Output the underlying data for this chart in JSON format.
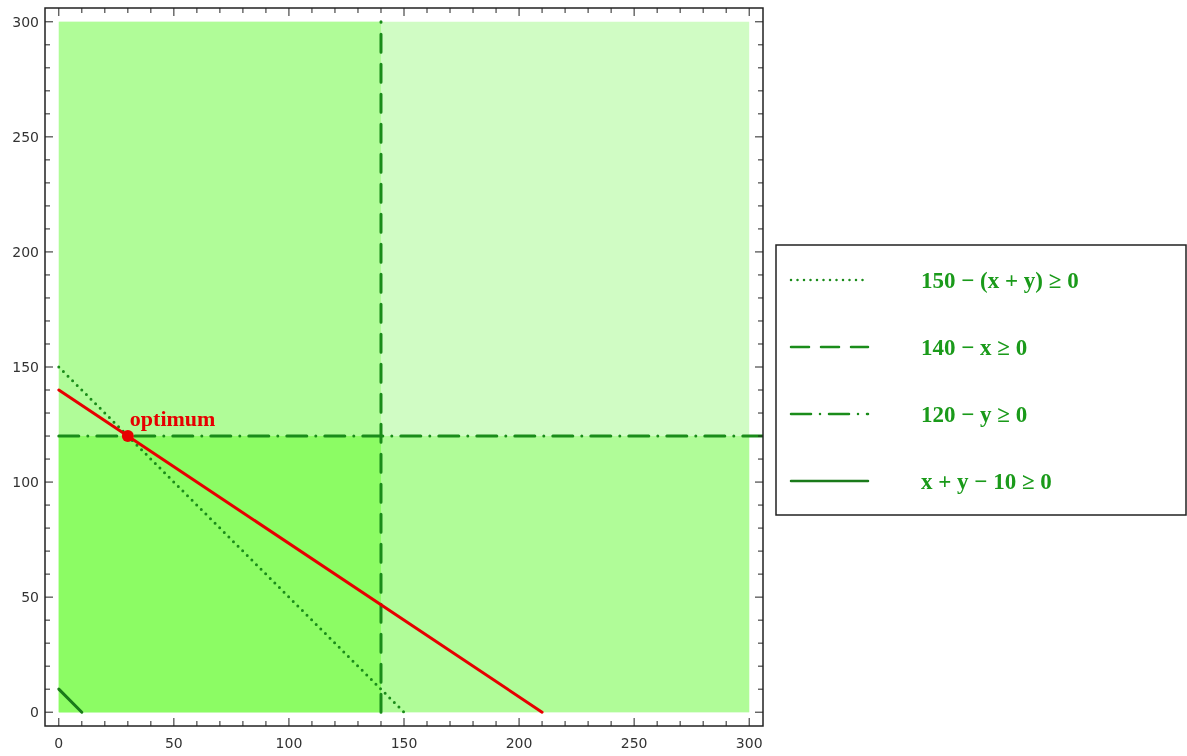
{
  "chart_data": {
    "type": "line",
    "xlim": [
      -6,
      306
    ],
    "ylim": [
      -6,
      306
    ],
    "xticks": [
      0,
      {
        "value": 10,
        "label": null
      },
      {
        "value": 20,
        "label": null
      },
      {
        "value": 30,
        "label": null
      },
      {
        "value": 40,
        "label": null
      },
      50,
      {
        "value": 60,
        "label": null
      },
      {
        "value": 70,
        "label": null
      },
      {
        "value": 80,
        "label": null
      },
      {
        "value": 90,
        "label": null
      },
      100,
      {
        "value": 110,
        "label": null
      },
      {
        "value": 120,
        "label": null
      },
      {
        "value": 130,
        "label": null
      },
      {
        "value": 140,
        "label": null
      },
      150,
      {
        "value": 160,
        "label": null
      },
      {
        "value": 170,
        "label": null
      },
      {
        "value": 180,
        "label": null
      },
      {
        "value": 190,
        "label": null
      },
      200,
      {
        "value": 210,
        "label": null
      },
      {
        "value": 220,
        "label": null
      },
      {
        "value": 230,
        "label": null
      },
      {
        "value": 240,
        "label": null
      },
      250,
      {
        "value": 260,
        "label": null
      },
      {
        "value": 270,
        "label": null
      },
      {
        "value": 280,
        "label": null
      },
      {
        "value": 290,
        "label": null
      },
      300
    ],
    "yticks": [
      0,
      {
        "value": 10,
        "label": null
      },
      {
        "value": 20,
        "label": null
      },
      {
        "value": 30,
        "label": null
      },
      {
        "value": 40,
        "label": null
      },
      50,
      {
        "value": 60,
        "label": null
      },
      {
        "value": 70,
        "label": null
      },
      {
        "value": 80,
        "label": null
      },
      {
        "value": 90,
        "label": null
      },
      100,
      {
        "value": 110,
        "label": null
      },
      {
        "value": 120,
        "label": null
      },
      {
        "value": 130,
        "label": null
      },
      {
        "value": 140,
        "label": null
      },
      150,
      {
        "value": 160,
        "label": null
      },
      {
        "value": 170,
        "label": null
      },
      {
        "value": 180,
        "label": null
      },
      {
        "value": 190,
        "label": null
      },
      200,
      {
        "value": 210,
        "label": null
      },
      {
        "value": 220,
        "label": null
      },
      {
        "value": 230,
        "label": null
      },
      {
        "value": 240,
        "label": null
      },
      250,
      {
        "value": 260,
        "label": null
      },
      {
        "value": 270,
        "label": null
      },
      {
        "value": 280,
        "label": null
      },
      {
        "value": 290,
        "label": null
      },
      300
    ],
    "legend": "right",
    "series": [
      {
        "type": "area",
        "color": "#d0fcc4",
        "x": [
          0,
          300
        ],
        "values": [
          300,
          300
        ]
      },
      {
        "type": "area",
        "color": "#b0fc98",
        "x": [
          0,
          140
        ],
        "values": [
          300,
          300
        ]
      },
      {
        "type": "area",
        "color": "#b0fc98",
        "x": [
          0,
          300
        ],
        "values": [
          120,
          120
        ]
      },
      {
        "type": "area",
        "color": "#8cfc64",
        "x": [
          0,
          140
        ],
        "values": [
          120,
          120
        ]
      },
      {
        "name": "150 − (x + y) ≥ 0",
        "color": "#1a8c1a",
        "line_style": "dotted",
        "x": [
          0,
          150
        ],
        "values": [
          150,
          0
        ]
      },
      {
        "name": "140 − x ≥ 0",
        "color": "#1a8c1a",
        "line_style": "dashed",
        "x": [
          140,
          140
        ],
        "values": [
          0,
          300
        ]
      },
      {
        "name": "120 − y ≥ 0",
        "color": "#1a8c1a",
        "line_style": "dashdot",
        "x": [
          0,
          306
        ],
        "values": [
          120,
          120
        ]
      },
      {
        "name": "x + y − 10 ≥ 0",
        "color": "#1a7a1a",
        "line_style": "solid",
        "x": [
          0,
          10
        ],
        "values": [
          10,
          0
        ]
      },
      {
        "color": "#e60000",
        "line_style": "solid",
        "x": [
          0,
          210
        ],
        "values": [
          140,
          0
        ]
      },
      {
        "type": "scatter",
        "color": "#e60000",
        "marker": "circle",
        "x": [
          30
        ],
        "values": [
          120
        ]
      }
    ],
    "annotations": [
      {
        "text": "optimum",
        "x": 30,
        "y": 120
      }
    ]
  }
}
